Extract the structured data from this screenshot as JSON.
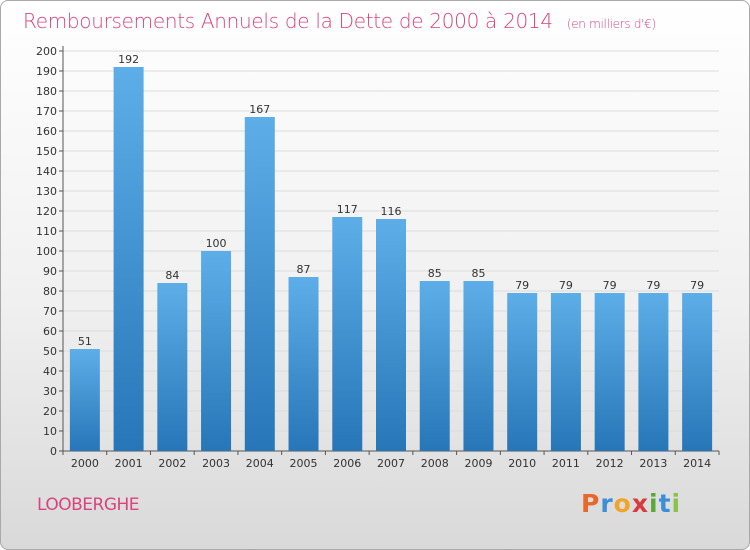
{
  "header": {
    "title": "Remboursements Annuels de la Dette de 2000 à 2014",
    "unit": "(en milliers d'€)"
  },
  "footer": {
    "commune": "LOOBERGHE",
    "brand": [
      "P",
      "r",
      "o",
      "x",
      "i",
      "t",
      "i"
    ]
  },
  "colors": {
    "title": "#d9437e",
    "bar_top": "#5daee8",
    "bar_bottom": "#2776b8",
    "brand": [
      "#e8672a",
      "#3b8fd6",
      "#f0a52a",
      "#d93b3b",
      "#5aa835",
      "#3b8fd6",
      "#8bc34a"
    ]
  },
  "chart_data": {
    "type": "bar",
    "categories": [
      "2000",
      "2001",
      "2002",
      "2003",
      "2004",
      "2005",
      "2006",
      "2007",
      "2008",
      "2009",
      "2010",
      "2011",
      "2012",
      "2013",
      "2014"
    ],
    "values": [
      51,
      192,
      84,
      100,
      167,
      87,
      117,
      116,
      85,
      85,
      79,
      79,
      79,
      79,
      79
    ],
    "ylim": [
      0,
      200
    ],
    "yticks": [
      0,
      10,
      20,
      30,
      40,
      50,
      60,
      70,
      80,
      90,
      100,
      110,
      120,
      130,
      140,
      150,
      160,
      170,
      180,
      190,
      200
    ],
    "grid": true,
    "legend": "none"
  }
}
